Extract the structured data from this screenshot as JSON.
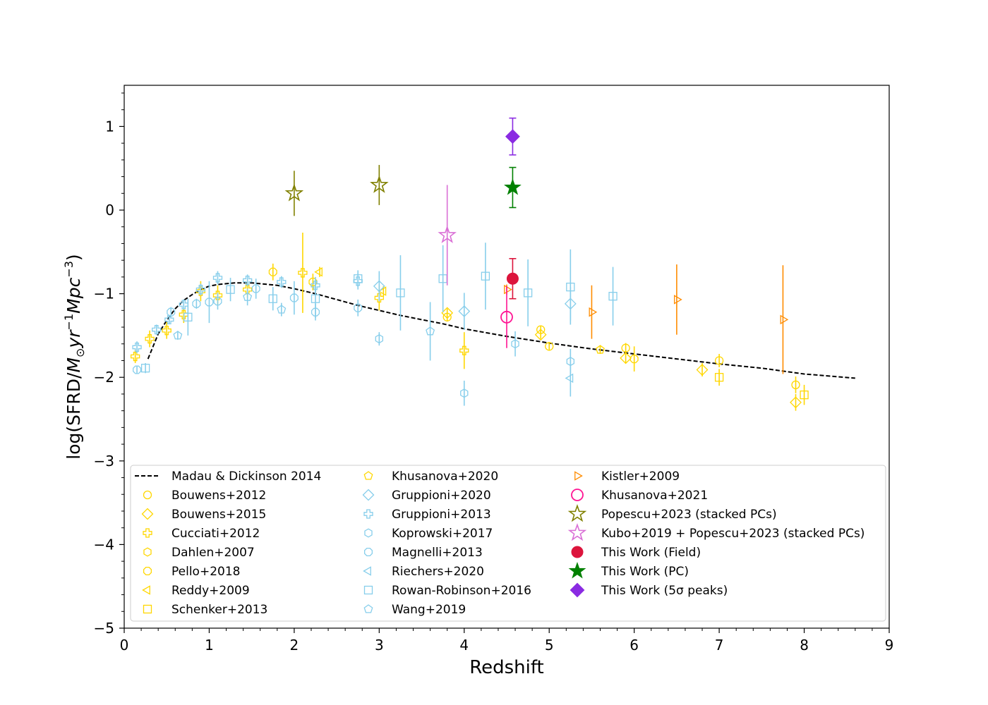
{
  "chart_data": {
    "type": "scatter",
    "title": "",
    "xlabel": "Redshift",
    "ylabel_main": "log(SFRD/",
    "ylabel_italic": "M",
    "ylabel_sub": "⊙",
    "ylabel_tail": "yr",
    "ylabel_exp1": "−1",
    "ylabel_tail2": "Mpc",
    "ylabel_exp2": "−3",
    "ylabel_close": ")",
    "xlim": [
      0,
      9
    ],
    "ylim": [
      -5,
      1.5
    ],
    "xticks": [
      0,
      1,
      2,
      3,
      4,
      5,
      6,
      7,
      8,
      9
    ],
    "xtick_labels": [
      "0",
      "1",
      "2",
      "3",
      "4",
      "5",
      "6",
      "7",
      "8",
      "9"
    ],
    "yticks": [
      1,
      0,
      -1,
      -2,
      -3,
      -4,
      -5
    ],
    "ytick_labels": [
      "1",
      "0",
      "−1",
      "−2",
      "−3",
      "−4",
      "−5"
    ],
    "model_curve": {
      "name": "Madau & Dickinson 2014",
      "color": "#000000",
      "x": [
        0.28,
        0.4,
        0.5,
        0.6,
        0.7,
        0.8,
        0.9,
        1.0,
        1.1,
        1.2,
        1.3,
        1.4,
        1.5,
        1.6,
        1.8,
        2.0,
        2.25,
        2.5,
        2.75,
        3.0,
        3.25,
        3.5,
        3.75,
        4.0,
        4.5,
        5.0,
        5.5,
        6.0,
        6.5,
        7.0,
        7.5,
        8.0,
        8.6
      ],
      "y": [
        -1.78,
        -1.48,
        -1.32,
        -1.18,
        -1.08,
        -1.01,
        -0.95,
        -0.91,
        -0.89,
        -0.88,
        -0.87,
        -0.87,
        -0.87,
        -0.88,
        -0.9,
        -0.94,
        -1.0,
        -1.07,
        -1.14,
        -1.2,
        -1.26,
        -1.31,
        -1.36,
        -1.42,
        -1.51,
        -1.59,
        -1.66,
        -1.72,
        -1.78,
        -1.84,
        -1.89,
        -1.96,
        -2.01
      ]
    },
    "series": [
      {
        "name": "Bouwens+2012",
        "marker": "circle",
        "color": "#FFD700",
        "filled": false,
        "points": [
          [
            3.8,
            -1.28,
            0.05
          ],
          [
            4.9,
            -1.43,
            0.05
          ],
          [
            5.0,
            -1.63,
            0.05
          ],
          [
            5.9,
            -1.65,
            0.06
          ],
          [
            7.0,
            -1.8,
            0.08
          ],
          [
            7.9,
            -2.09,
            0.1
          ]
        ]
      },
      {
        "name": "Bouwens+2015",
        "marker": "diamond",
        "color": "#FFD700",
        "filled": false,
        "points": [
          [
            3.8,
            -1.23,
            0.05
          ],
          [
            4.9,
            -1.49,
            0.05
          ],
          [
            5.9,
            -1.77,
            0.06
          ],
          [
            6.8,
            -1.91,
            0.08
          ],
          [
            7.9,
            -2.3,
            0.1
          ]
        ]
      },
      {
        "name": "Cucciati+2012",
        "marker": "cross",
        "color": "#FFD700",
        "filled": false,
        "points": [
          [
            0.13,
            -1.75,
            0.08
          ],
          [
            0.3,
            -1.54,
            0.1
          ],
          [
            0.5,
            -1.44,
            0.1
          ],
          [
            0.7,
            -1.25,
            0.1
          ],
          [
            0.9,
            -0.97,
            0.12
          ],
          [
            1.1,
            -1.02,
            0.12
          ],
          [
            1.45,
            -0.95,
            0.1
          ],
          [
            2.1,
            -0.75,
            0.48
          ],
          [
            3.0,
            -1.05,
            0.15
          ],
          [
            4.0,
            -1.68,
            0.22
          ]
        ]
      },
      {
        "name": "Dahlen+2007",
        "marker": "hexagon",
        "color": "#FFD700",
        "filled": false,
        "points": []
      },
      {
        "name": "Pello+2018",
        "marker": "octagon",
        "color": "#FFD700",
        "filled": false,
        "points": [
          [
            1.75,
            -0.74,
            0.1
          ],
          [
            2.22,
            -0.86,
            0.1
          ],
          [
            6.0,
            -1.78,
            0.15
          ]
        ]
      },
      {
        "name": "Reddy+2009",
        "marker": "tri_left",
        "color": "#FFD700",
        "filled": false,
        "points": [
          [
            2.3,
            -0.74,
            0.06
          ],
          [
            3.05,
            -0.97,
            0.06
          ]
        ]
      },
      {
        "name": "Schenker+2013",
        "marker": "square",
        "color": "#FFD700",
        "filled": false,
        "points": [
          [
            7.0,
            -2.0,
            0.1
          ],
          [
            8.0,
            -2.21,
            0.12
          ]
        ]
      },
      {
        "name": "Khusanova+2020",
        "marker": "pentagon",
        "color": "#FFD700",
        "filled": false,
        "points": [
          [
            5.6,
            -1.67,
            0.05
          ]
        ]
      },
      {
        "name": "Gruppioni+2020",
        "marker": "diamond",
        "color": "#87CEEB",
        "filled": false,
        "points": [
          [
            3.0,
            -0.91,
            0.18
          ],
          [
            4.0,
            -1.21,
            0.22
          ],
          [
            5.25,
            -1.12,
            0.2
          ]
        ]
      },
      {
        "name": "Gruppioni+2013",
        "marker": "cross",
        "color": "#87CEEB",
        "filled": false,
        "points": [
          [
            0.15,
            -1.64,
            0.07
          ],
          [
            0.38,
            -1.43,
            0.06
          ],
          [
            0.53,
            -1.31,
            0.05
          ],
          [
            0.7,
            -1.13,
            0.06
          ],
          [
            0.9,
            -0.95,
            0.07
          ],
          [
            1.1,
            -0.81,
            0.08
          ],
          [
            1.45,
            -0.84,
            0.07
          ],
          [
            1.85,
            -0.86,
            0.07
          ],
          [
            2.25,
            -0.9,
            0.1
          ],
          [
            2.75,
            -0.85,
            0.1
          ]
        ]
      },
      {
        "name": "Koprowski+2017",
        "marker": "hexagon",
        "color": "#87CEEB",
        "filled": false,
        "points": [
          [
            3.0,
            -1.54,
            0.08
          ],
          [
            4.0,
            -2.19,
            0.15
          ],
          [
            4.6,
            -1.6,
            0.15
          ],
          [
            5.25,
            -1.81,
            0.15
          ]
        ]
      },
      {
        "name": "Magnelli+2013",
        "marker": "octagon",
        "color": "#87CEEB",
        "filled": false,
        "points": [
          [
            0.15,
            -1.91,
            0.05
          ],
          [
            0.55,
            -1.22,
            0.06
          ],
          [
            0.85,
            -1.12,
            0.06
          ],
          [
            1.0,
            -1.1,
            0.25
          ],
          [
            1.1,
            -1.09,
            0.1
          ],
          [
            1.55,
            -0.94,
            0.12
          ],
          [
            2.0,
            -1.05,
            0.2
          ],
          [
            2.25,
            -1.22,
            0.1
          ],
          [
            2.75,
            -1.17,
            0.1
          ]
        ]
      },
      {
        "name": "Riechers+2020",
        "marker": "tri_left",
        "color": "#87CEEB",
        "filled": false,
        "points": [
          [
            5.25,
            -2.01,
            0.22
          ]
        ]
      },
      {
        "name": "Rowan-Robinson+2016",
        "marker": "square",
        "color": "#87CEEB",
        "filled": false,
        "points": [
          [
            0.25,
            -1.89,
            0.06
          ],
          [
            0.75,
            -1.28,
            0.22
          ],
          [
            1.25,
            -0.95,
            0.14
          ],
          [
            1.75,
            -1.06,
            0.14
          ],
          [
            2.25,
            -1.06,
            0.23
          ],
          [
            2.75,
            -0.82,
            0.1
          ],
          [
            3.25,
            -0.99,
            0.45
          ],
          [
            3.75,
            -0.82,
            0.4
          ],
          [
            4.25,
            -0.79,
            0.4
          ],
          [
            4.75,
            -0.99,
            0.4
          ],
          [
            5.25,
            -0.92,
            0.45
          ],
          [
            5.75,
            -1.03,
            0.35
          ]
        ]
      },
      {
        "name": "Wang+2019",
        "marker": "pentagon",
        "color": "#87CEEB",
        "filled": false,
        "points": [
          [
            0.63,
            -1.5,
            0.05
          ],
          [
            1.45,
            -1.04,
            0.1
          ],
          [
            1.85,
            -1.19,
            0.08
          ],
          [
            3.6,
            -1.45,
            0.35
          ]
        ]
      },
      {
        "name": "Kistler+2009",
        "marker": "tri_right",
        "color": "#FF8C00",
        "filled": false,
        "points": [
          [
            4.5,
            -0.95,
            0.06
          ],
          [
            5.5,
            -1.22,
            0.32
          ],
          [
            6.5,
            -1.07,
            0.42
          ],
          [
            7.75,
            -1.31,
            0.65
          ]
        ]
      },
      {
        "name": "Khusanova+2021",
        "marker": "circle_big",
        "color": "#FF1493",
        "filled": false,
        "points": [
          [
            4.5,
            -1.28,
            0.37
          ]
        ]
      },
      {
        "name": "Popescu+2023 (stacked PCs)",
        "marker": "star",
        "color": "#808000",
        "filled": false,
        "points": [
          [
            2.0,
            0.2,
            0.27
          ],
          [
            3.0,
            0.3,
            0.24
          ]
        ]
      },
      {
        "name": "Kubo+2019 + Popescu+2023 (stacked PCs)",
        "marker": "star",
        "color": "#DA70D6",
        "filled": false,
        "points": [
          [
            3.8,
            -0.3,
            0.6
          ]
        ]
      },
      {
        "name": "This Work (Field)",
        "marker": "circle_big",
        "color": "#DC143C",
        "filled": true,
        "points": [
          [
            4.57,
            -0.82,
            0.24
          ]
        ]
      },
      {
        "name": "This Work (PC)",
        "marker": "star",
        "color": "#008000",
        "filled": true,
        "points": [
          [
            4.57,
            0.27,
            0.24
          ]
        ]
      },
      {
        "name": "This Work (5σ peaks)",
        "marker": "diamond_big",
        "color": "#8A2BE2",
        "filled": true,
        "points": [
          [
            4.57,
            0.88,
            0.22
          ]
        ]
      }
    ],
    "legend_placement": "lower center, three columns",
    "legend": {
      "col1": [
        {
          "label": "Madau & Dickinson 2014",
          "marker": "line",
          "color": "#000000",
          "filled": false
        },
        {
          "label": "Bouwens+2012",
          "marker": "circle",
          "color": "#FFD700",
          "filled": false
        },
        {
          "label": "Bouwens+2015",
          "marker": "diamond",
          "color": "#FFD700",
          "filled": false
        },
        {
          "label": "Cucciati+2012",
          "marker": "cross",
          "color": "#FFD700",
          "filled": false
        },
        {
          "label": "Dahlen+2007",
          "marker": "hexagon",
          "color": "#FFD700",
          "filled": false
        },
        {
          "label": "Pello+2018",
          "marker": "octagon",
          "color": "#FFD700",
          "filled": false
        },
        {
          "label": "Reddy+2009",
          "marker": "tri_left",
          "color": "#FFD700",
          "filled": false
        },
        {
          "label": "Schenker+2013",
          "marker": "square",
          "color": "#FFD700",
          "filled": false
        }
      ],
      "col2": [
        {
          "label": "Khusanova+2020",
          "marker": "pentagon",
          "color": "#FFD700",
          "filled": false
        },
        {
          "label": "Gruppioni+2020",
          "marker": "diamond",
          "color": "#87CEEB",
          "filled": false
        },
        {
          "label": "Gruppioni+2013",
          "marker": "cross",
          "color": "#87CEEB",
          "filled": false
        },
        {
          "label": "Koprowski+2017",
          "marker": "hexagon",
          "color": "#87CEEB",
          "filled": false
        },
        {
          "label": "Magnelli+2013",
          "marker": "octagon",
          "color": "#87CEEB",
          "filled": false
        },
        {
          "label": "Riechers+2020",
          "marker": "tri_left",
          "color": "#87CEEB",
          "filled": false
        },
        {
          "label": "Rowan-Robinson+2016",
          "marker": "square",
          "color": "#87CEEB",
          "filled": false
        },
        {
          "label": "Wang+2019",
          "marker": "pentagon",
          "color": "#87CEEB",
          "filled": false
        }
      ],
      "col3": [
        {
          "label": "Kistler+2009",
          "marker": "tri_right",
          "color": "#FF8C00",
          "filled": false
        },
        {
          "label": "Khusanova+2021",
          "marker": "circle_big",
          "color": "#FF1493",
          "filled": false
        },
        {
          "label": "Popescu+2023 (stacked PCs)",
          "marker": "star",
          "color": "#808000",
          "filled": false
        },
        {
          "label": "Kubo+2019 + Popescu+2023 (stacked PCs)",
          "marker": "star",
          "color": "#DA70D6",
          "filled": false
        },
        {
          "label": "This Work (Field)",
          "marker": "circle_big",
          "color": "#DC143C",
          "filled": true
        },
        {
          "label": "This Work (PC)",
          "marker": "star",
          "color": "#008000",
          "filled": true
        },
        {
          "label": "This Work (5σ peaks)",
          "marker": "diamond_big",
          "color": "#8A2BE2",
          "filled": true
        }
      ]
    }
  }
}
